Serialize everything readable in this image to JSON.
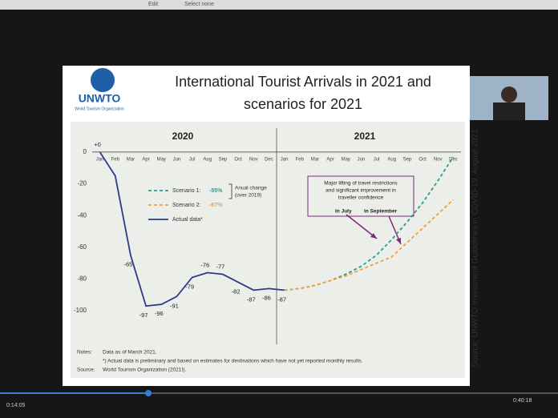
{
  "header": {
    "menu": [
      "Edit",
      "Select none"
    ]
  },
  "logo": {
    "name": "UNWTO",
    "subtitle": "World Tourism Organization"
  },
  "source_vertical": "Source: UNWTO Investment Guidelines in COVID-19, August 2021",
  "player": {
    "elapsed": "0:14:05",
    "total": "0:40:18"
  },
  "notes": [
    [
      "Notes:",
      "Data as of March 2021."
    ],
    [
      "",
      "*) Actual data is preliminary and based on estimates for destinations which have not yet reported monthly results."
    ],
    [
      "Source:",
      "World Tourism Organization (2021I)."
    ]
  ],
  "chart_data": {
    "type": "line",
    "title": [
      "International Tourist Arrivals in 2021 and",
      "scenarios for 2021"
    ],
    "year_labels": [
      "2020",
      "2021"
    ],
    "categories": [
      "Jan",
      "Feb",
      "Mar",
      "Apr",
      "May",
      "Jun",
      "Jul",
      "Aug",
      "Sep",
      "Oct",
      "Nov",
      "Dec",
      "Jan",
      "Feb",
      "Mar",
      "Apr",
      "May",
      "Jun",
      "Jul",
      "Aug",
      "Sep",
      "Oct",
      "Nov",
      "Dec"
    ],
    "ylim": [
      -106,
      6
    ],
    "yticks": [
      0,
      -20,
      -40,
      -60,
      -80,
      -100
    ],
    "legend_note": [
      "Anual change",
      "(over 2019)"
    ],
    "annotation": {
      "lines": [
        "Major lifting of travel restrictions",
        "and significant improvement in",
        "traveller confidence"
      ],
      "markers": [
        "in July",
        "in September"
      ]
    },
    "series": [
      {
        "name": "Scenario 1:",
        "change": "-55%",
        "color": "#2a9d8f",
        "dashed": true,
        "values": [
          null,
          null,
          null,
          null,
          null,
          null,
          null,
          null,
          null,
          null,
          null,
          null,
          -87,
          -86,
          -84,
          -81,
          -77,
          -72,
          -65,
          -55,
          -44,
          -32,
          -18,
          -3
        ]
      },
      {
        "name": "Scenario 2:",
        "change": "-67%",
        "color": "#f0a040",
        "dashed": true,
        "values": [
          null,
          null,
          null,
          null,
          null,
          null,
          null,
          null,
          null,
          null,
          null,
          null,
          -87,
          -86,
          -84,
          -81,
          -78,
          -74,
          -70,
          -66,
          -57,
          -48,
          -39,
          -30
        ]
      },
      {
        "name": "Actual data*",
        "color": "#2b3a8c",
        "dashed": false,
        "values": [
          0,
          -15,
          -65,
          -97,
          -96,
          -91,
          -79,
          -76,
          -77,
          -82,
          -87,
          -86,
          -87,
          null,
          null,
          null,
          null,
          null,
          null,
          null,
          null,
          null,
          null,
          null
        ],
        "value_labels": [
          "+0",
          null,
          "-65",
          "-97",
          "-96",
          "-91",
          "-79",
          "-76",
          "-77",
          "-82",
          "-87",
          "-86",
          "-87",
          null,
          null,
          null,
          null,
          null,
          null,
          null,
          null,
          null,
          null,
          null
        ]
      }
    ]
  }
}
